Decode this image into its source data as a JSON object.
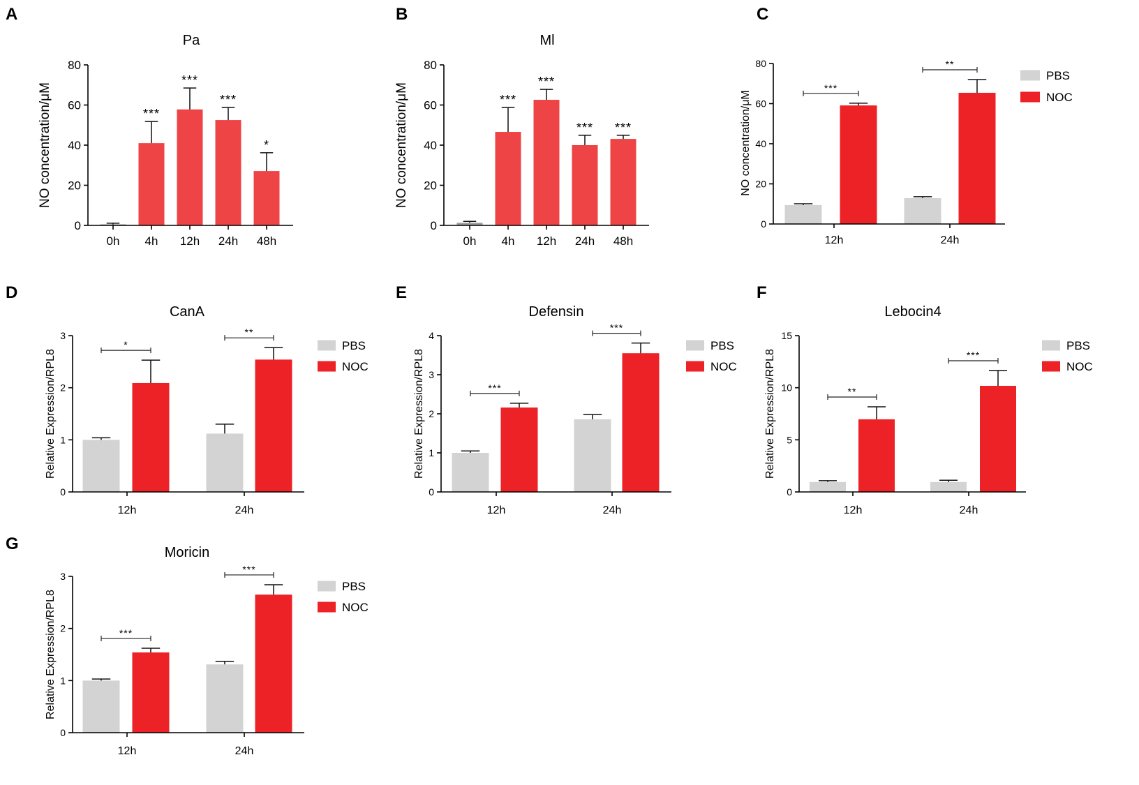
{
  "chart_data": [
    {
      "panel": "A",
      "type": "bar",
      "title": "Pa",
      "ylabel": "NO concentration/μM",
      "ylim": [
        0,
        80
      ],
      "yticks": [
        0,
        20,
        40,
        60,
        80
      ],
      "categories": [
        "0h",
        "4h",
        "12h",
        "24h",
        "48h"
      ],
      "values": [
        0.5,
        41.0,
        57.8,
        52.5,
        27.1
      ],
      "errors": [
        0.6,
        10.8,
        10.7,
        6.3,
        9.1
      ],
      "significance": [
        null,
        "***",
        "***",
        "***",
        "*"
      ],
      "bar_colors": [
        "#9e9e9e",
        "#ef4446",
        "#ef4446",
        "#ef4446",
        "#ef4446"
      ]
    },
    {
      "panel": "B",
      "type": "bar",
      "title": "Ml",
      "ylabel": "NO concentration/μM",
      "ylim": [
        0,
        80
      ],
      "yticks": [
        0,
        20,
        40,
        60,
        80
      ],
      "categories": [
        "0h",
        "4h",
        "12h",
        "24h",
        "48h"
      ],
      "values": [
        1.3,
        46.6,
        62.6,
        40.0,
        43.1
      ],
      "errors": [
        0.7,
        12.2,
        5.2,
        4.9,
        1.8
      ],
      "significance": [
        null,
        "***",
        "***",
        "***",
        "***"
      ],
      "bar_colors": [
        "#9e9e9e",
        "#ef4446",
        "#ef4446",
        "#ef4446",
        "#ef4446"
      ]
    },
    {
      "panel": "C",
      "type": "bar",
      "ylabel": "NO concentration/μM",
      "ylim": [
        0,
        80
      ],
      "yticks": [
        0,
        20,
        40,
        60,
        80
      ],
      "categories": [
        "12h",
        "24h"
      ],
      "series": [
        {
          "name": "PBS",
          "color": "#d3d3d3",
          "values": [
            9.4,
            12.9
          ],
          "errors": [
            0.7,
            0.7
          ]
        },
        {
          "name": "NOC",
          "color": "#ec2227",
          "values": [
            59.1,
            65.4
          ],
          "errors": [
            1.1,
            6.6
          ]
        }
      ],
      "significance": [
        "***",
        "**"
      ]
    },
    {
      "panel": "D",
      "type": "bar",
      "title": "CanA",
      "ylabel": "Relative Expression/RPL8",
      "ylim": [
        0,
        3
      ],
      "yticks": [
        0,
        1,
        2,
        3
      ],
      "categories": [
        "12h",
        "24h"
      ],
      "series": [
        {
          "name": "PBS",
          "color": "#d3d3d3",
          "values": [
            1.0,
            1.12
          ],
          "errors": [
            0.04,
            0.18
          ]
        },
        {
          "name": "NOC",
          "color": "#ec2227",
          "values": [
            2.09,
            2.54
          ],
          "errors": [
            0.44,
            0.23
          ]
        }
      ],
      "significance": [
        "*",
        "**"
      ]
    },
    {
      "panel": "E",
      "type": "bar",
      "title": "Defensin",
      "ylabel": "Relative Expression/RPL8",
      "ylim": [
        0,
        4
      ],
      "yticks": [
        0,
        1,
        2,
        3,
        4
      ],
      "categories": [
        "12h",
        "24h"
      ],
      "series": [
        {
          "name": "PBS",
          "color": "#d3d3d3",
          "values": [
            1.0,
            1.86
          ],
          "errors": [
            0.05,
            0.12
          ]
        },
        {
          "name": "NOC",
          "color": "#ec2227",
          "values": [
            2.16,
            3.55
          ],
          "errors": [
            0.11,
            0.26
          ]
        }
      ],
      "significance": [
        "***",
        "***"
      ]
    },
    {
      "panel": "F",
      "type": "bar",
      "title": "Lebocin4",
      "ylabel": "Relative Expression/RPL8",
      "ylim": [
        0,
        15
      ],
      "yticks": [
        0,
        5,
        10,
        15
      ],
      "categories": [
        "12h",
        "24h"
      ],
      "series": [
        {
          "name": "PBS",
          "color": "#d3d3d3",
          "values": [
            0.95,
            0.95
          ],
          "errors": [
            0.13,
            0.17
          ]
        },
        {
          "name": "NOC",
          "color": "#ec2227",
          "values": [
            6.97,
            10.18
          ],
          "errors": [
            1.2,
            1.47
          ]
        }
      ],
      "significance": [
        "**",
        "***"
      ]
    },
    {
      "panel": "G",
      "type": "bar",
      "title": "Moricin",
      "ylabel": "Relative Expression/RPL8",
      "ylim": [
        0,
        3
      ],
      "yticks": [
        0,
        1,
        2,
        3
      ],
      "categories": [
        "12h",
        "24h"
      ],
      "series": [
        {
          "name": "PBS",
          "color": "#d3d3d3",
          "values": [
            1.0,
            1.31
          ],
          "errors": [
            0.03,
            0.06
          ]
        },
        {
          "name": "NOC",
          "color": "#ec2227",
          "values": [
            1.54,
            2.65
          ],
          "errors": [
            0.08,
            0.19
          ]
        }
      ],
      "significance": [
        "***",
        "***"
      ]
    }
  ]
}
